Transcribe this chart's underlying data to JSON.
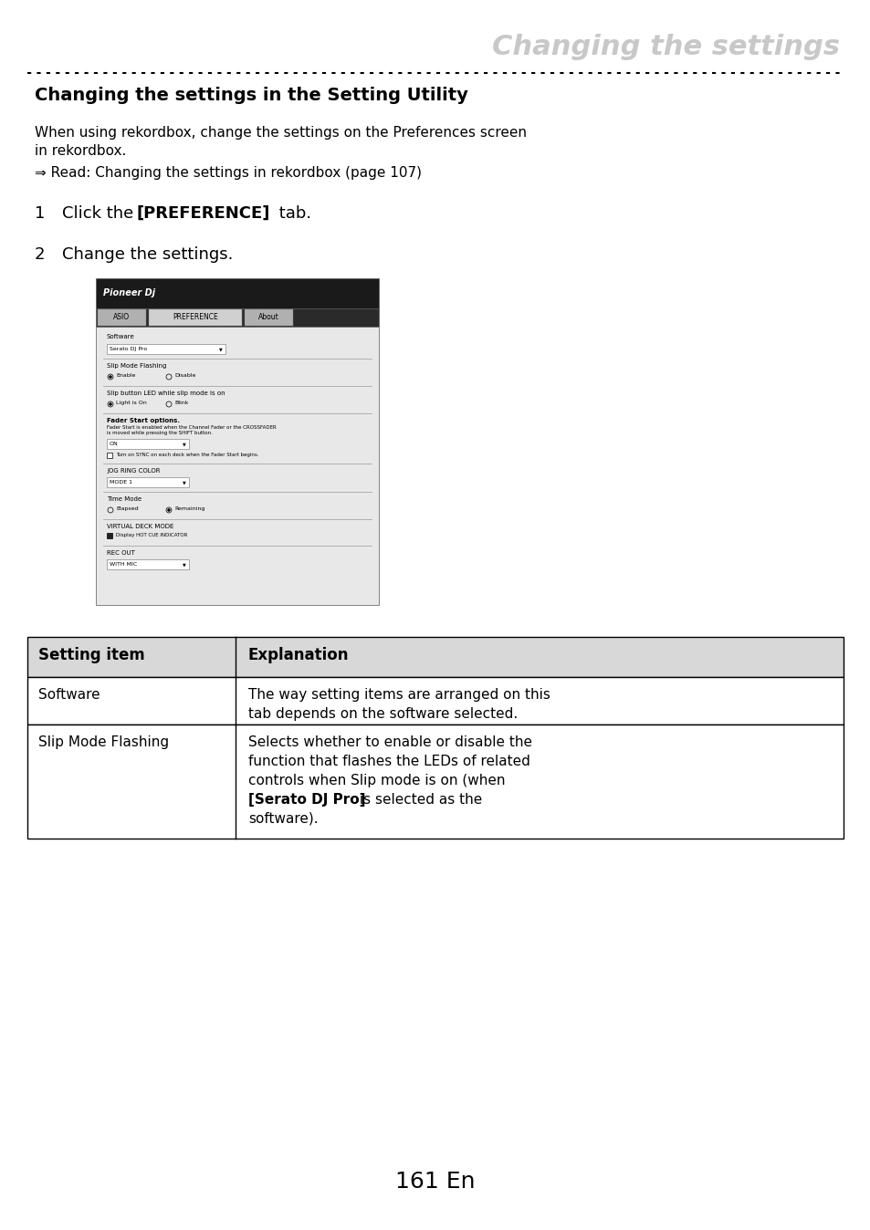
{
  "page_title": "Changing the settings",
  "section_title": "Changing the settings in the Setting Utility",
  "body_text_1": "When using rekordbox, change the settings on the Preferences screen\nin rekordbox.",
  "arrow_text": "⇒ Read: Changing the settings in rekordbox (page 107)",
  "step1_prefix": "Click the ",
  "step1_bold": "[PREFERENCE]",
  "step1_suffix": " tab.",
  "step2": "Change the settings.",
  "table_header_col1": "Setting item",
  "table_header_col2": "Explanation",
  "table_rows": [
    {
      "col1": "Software",
      "col2": "The way setting items are arranged on this\ntab depends on the software selected."
    },
    {
      "col1": "Slip Mode Flashing",
      "col2_parts": [
        {
          "text": "Selects whether to enable or disable the\nfunction that flashes the LEDs of related\ncontrols when Slip mode is on (when\n",
          "bold": false
        },
        {
          "text": "[Serato DJ Pro]",
          "bold": true
        },
        {
          "text": " is selected as the\nsoftware).",
          "bold": false
        }
      ]
    }
  ],
  "page_number": "161 En",
  "title_color": "#c8c8c8",
  "bg_color": "#ffffff",
  "text_color": "#000000",
  "table_header_bg": "#d8d8d8",
  "table_border_color": "#000000",
  "dashed_line_color": "#000000"
}
